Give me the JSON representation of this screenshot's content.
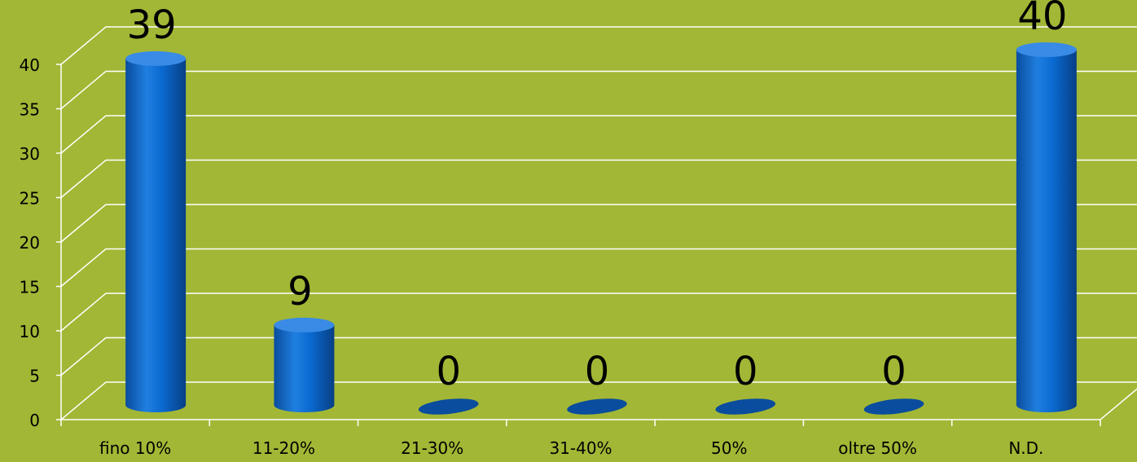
{
  "chart_data": {
    "type": "bar",
    "style": "3d-cylinder",
    "categories": [
      "fino 10%",
      "11-20%",
      "21-30%",
      "31-40%",
      "50%",
      "oltre 50%",
      "N.D."
    ],
    "values": [
      39,
      9,
      0,
      0,
      0,
      0,
      40
    ],
    "data_labels": [
      "39",
      "9",
      "0",
      "0",
      "0",
      "0",
      "40"
    ],
    "yticks": [
      "0",
      "5",
      "10",
      "15",
      "20",
      "25",
      "30",
      "35",
      "40"
    ],
    "ylim": [
      0,
      40
    ],
    "grid": true,
    "legend": "none",
    "colors": {
      "background": "#a2b735",
      "bar": "#0a6ad1",
      "bar_dark": "#0a4d9e",
      "bar_light": "#3a8be6",
      "grid": "#ffffff",
      "text": "#000000"
    }
  }
}
